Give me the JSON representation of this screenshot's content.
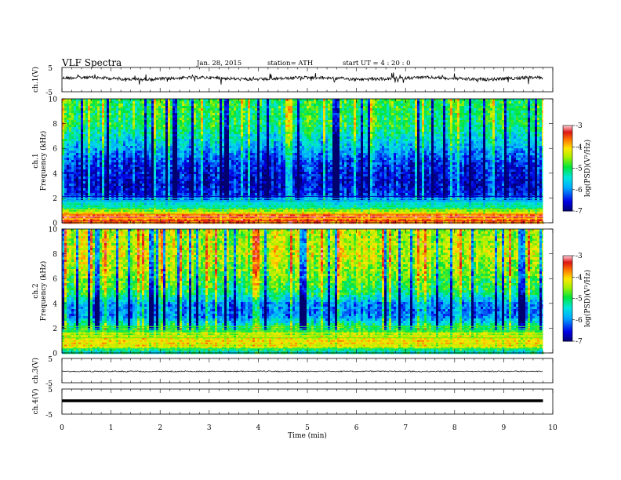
{
  "header": {
    "title": "VLF  Spectra",
    "date": "Jan. 28, 2015",
    "station": "station= ATH",
    "start_ut": "start  UT  =   4  : 20 : 0"
  },
  "chart_data": [
    {
      "type": "line",
      "panel": "ch1-waveform",
      "ylabel": "ch.1(V)",
      "yticks": [
        "5",
        "-5"
      ],
      "ylim": [
        -5,
        5
      ],
      "xlim": [
        0,
        10
      ],
      "series_style": "noisy trace near 0 V, slight offset above center",
      "duration_min": 9.8
    },
    {
      "type": "heatmap",
      "panel": "ch1-spectrogram",
      "ylabel": "ch.1\nFrequency  (kHz)",
      "ylabel_parts": [
        "ch.1",
        "Frequency  (kHz)"
      ],
      "yticks": [
        "0",
        "2",
        "4",
        "6",
        "8",
        "10"
      ],
      "ylim": [
        0,
        10
      ],
      "xlim": [
        0,
        10
      ],
      "duration_min": 9.8,
      "colorbar": {
        "label": "log(PSD)(V²/Hz)",
        "ticks": [
          "-3",
          "-4",
          "-5",
          "-6",
          "-7"
        ],
        "range": [
          -7,
          -3
        ]
      },
      "profile": [
        {
          "f": 0.2,
          "v": -3.6
        },
        {
          "f": 0.6,
          "v": -3.4
        },
        {
          "f": 1.0,
          "v": -4.4
        },
        {
          "f": 1.4,
          "v": -5.2
        },
        {
          "f": 1.8,
          "v": -5.4
        },
        {
          "f": 2.2,
          "v": -6.3
        },
        {
          "f": 3.0,
          "v": -6.6
        },
        {
          "f": 4.0,
          "v": -6.5
        },
        {
          "f": 5.0,
          "v": -6.3
        },
        {
          "f": 6.5,
          "v": -5.6
        },
        {
          "f": 8.0,
          "v": -5.0
        },
        {
          "f": 9.5,
          "v": -4.9
        }
      ]
    },
    {
      "type": "heatmap",
      "panel": "ch2-spectrogram",
      "ylabel_parts": [
        "ch.2",
        "Frequency  (kHz)"
      ],
      "yticks": [
        "0",
        "2",
        "4",
        "6",
        "8",
        "10"
      ],
      "ylim": [
        0,
        10
      ],
      "xlim": [
        0,
        10
      ],
      "duration_min": 9.8,
      "colorbar": {
        "label": "log(PSD)(V²/Hz)",
        "ticks": [
          "-3",
          "-4",
          "-5",
          "-6",
          "-7"
        ],
        "range": [
          -7,
          -3
        ]
      },
      "profile": [
        {
          "f": 0.2,
          "v": -5.2
        },
        {
          "f": 0.6,
          "v": -4.2
        },
        {
          "f": 1.0,
          "v": -4.0
        },
        {
          "f": 1.5,
          "v": -4.3
        },
        {
          "f": 2.2,
          "v": -5.0
        },
        {
          "f": 3.0,
          "v": -6.0
        },
        {
          "f": 4.0,
          "v": -6.0
        },
        {
          "f": 5.0,
          "v": -5.0
        },
        {
          "f": 6.5,
          "v": -4.6
        },
        {
          "f": 8.0,
          "v": -4.3
        },
        {
          "f": 9.5,
          "v": -4.4
        }
      ]
    },
    {
      "type": "line",
      "panel": "ch3-waveform",
      "ylabel": "ch.3(V)",
      "yticks": [
        "5",
        "-5"
      ],
      "ylim": [
        -5,
        5
      ],
      "xlim": [
        0,
        10
      ],
      "duration_min": 9.8
    },
    {
      "type": "line",
      "panel": "ch4-waveform",
      "ylabel": "ch.4(V)",
      "yticks": [
        "5",
        "-5"
      ],
      "ylim": [
        -5,
        5
      ],
      "xlim": [
        0,
        10
      ],
      "duration_min": 9.8
    }
  ],
  "xaxis": {
    "label": "Time  (min)",
    "ticks": [
      "0",
      "1",
      "2",
      "3",
      "4",
      "5",
      "6",
      "7",
      "8",
      "9",
      "10"
    ],
    "range": [
      0,
      10
    ]
  }
}
